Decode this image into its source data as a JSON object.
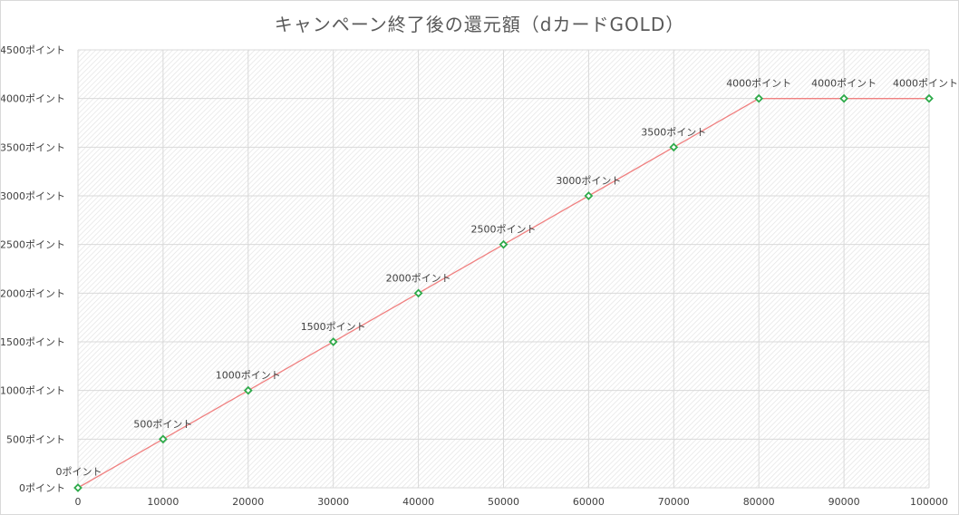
{
  "chart_data": {
    "type": "line",
    "title": "キャンペーン終了後の還元額（dカードGOLD）",
    "xlabel": "",
    "ylabel": "",
    "x": [
      0,
      10000,
      20000,
      30000,
      40000,
      50000,
      60000,
      70000,
      80000,
      90000,
      100000
    ],
    "x_tick_labels": [
      "0",
      "10000",
      "20000",
      "30000",
      "40000",
      "50000",
      "60000",
      "70000",
      "80000",
      "90000",
      "100000"
    ],
    "y_tick_values": [
      0,
      500,
      1000,
      1500,
      2000,
      2500,
      3000,
      3500,
      4000,
      4500
    ],
    "y_tick_labels": [
      "0ポイント",
      "500ポイント",
      "1000ポイント",
      "1500ポイント",
      "2000ポイント",
      "2500ポイント",
      "3000ポイント",
      "3500ポイント",
      "4000ポイント",
      "4500ポイント"
    ],
    "xlim": [
      0,
      100000
    ],
    "ylim": [
      0,
      4500
    ],
    "grid": true,
    "legend": "none",
    "series": [
      {
        "values": [
          0,
          500,
          1000,
          1500,
          2000,
          2500,
          3000,
          3500,
          4000,
          4000,
          4000
        ],
        "data_labels": [
          "0ポイント",
          "500ポイント",
          "1000ポイント",
          "1500ポイント",
          "2000ポイント",
          "2500ポイント",
          "3000ポイント",
          "3500ポイント",
          "4000ポイント",
          "4000ポイント",
          "4000ポイント"
        ],
        "line_color": "#f08080",
        "marker_color": "#2eaa4a"
      }
    ]
  }
}
